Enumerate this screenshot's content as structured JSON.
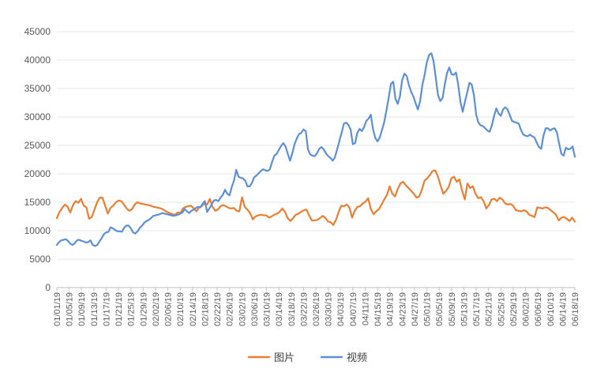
{
  "chart_data": {
    "type": "line",
    "ylim": [
      0,
      45000
    ],
    "y_ticks": [
      0,
      5000,
      10000,
      15000,
      20000,
      25000,
      30000,
      35000,
      40000,
      45000
    ],
    "x_tick_labels": [
      "01/01/19",
      "01/05/19",
      "01/09/19",
      "01/13/19",
      "01/17/19",
      "01/21/19",
      "01/25/19",
      "01/29/19",
      "02/02/19",
      "02/06/19",
      "02/10/19",
      "02/14/19",
      "02/18/19",
      "02/22/19",
      "02/26/19",
      "03/02/19",
      "03/06/19",
      "03/10/19",
      "03/14/19",
      "03/18/19",
      "03/22/19",
      "03/26/19",
      "03/30/19",
      "04/03/19",
      "04/07/19",
      "04/11/19",
      "04/15/19",
      "04/19/19",
      "04/23/19",
      "04/27/19",
      "05/01/19",
      "05/05/19",
      "05/09/19",
      "05/13/19",
      "05/17/19",
      "05/21/19",
      "05/25/19",
      "05/29/19",
      "06/02/19",
      "06/06/19",
      "06/10/19",
      "06/14/19",
      "06/18/19"
    ],
    "grid": true,
    "legend_position": "bottom",
    "series": [
      {
        "name": "图片",
        "color": "#ED7D31",
        "values": [
          12200,
          13300,
          14000,
          14600,
          14200,
          13200,
          14500,
          15200,
          14900,
          15600,
          14400,
          14100,
          12100,
          12400,
          13700,
          15000,
          15800,
          15800,
          14400,
          13000,
          14000,
          14400,
          15000,
          15300,
          15200,
          14600,
          13900,
          13500,
          13800,
          14600,
          15000,
          14800,
          14700,
          14600,
          14500,
          14400,
          14200,
          14100,
          14000,
          13900,
          13600,
          13300,
          13100,
          12900,
          12800,
          13200,
          13100,
          13900,
          14200,
          14300,
          14400,
          13900,
          13400,
          14100,
          14300,
          14800,
          14600,
          15600,
          14200,
          13500,
          13700,
          14300,
          14500,
          14300,
          14000,
          13900,
          14000,
          13500,
          13400,
          15900,
          14200,
          13700,
          13100,
          12000,
          12500,
          12700,
          12800,
          12700,
          12700,
          12300,
          12500,
          12800,
          13000,
          13300,
          13900,
          13300,
          12200,
          11700,
          12200,
          12800,
          13000,
          13300,
          13600,
          13700,
          12700,
          11800,
          11800,
          11900,
          12200,
          12600,
          12300,
          11600,
          11500,
          11000,
          11900,
          13300,
          14400,
          14300,
          14600,
          14100,
          12300,
          13500,
          14200,
          14300,
          14800,
          15100,
          15700,
          13800,
          12900,
          13400,
          13800,
          14600,
          15500,
          16300,
          17800,
          16500,
          16000,
          17300,
          18300,
          18600,
          18000,
          17500,
          17000,
          16500,
          15800,
          16000,
          17200,
          18800,
          19200,
          19800,
          20500,
          20600,
          19500,
          17900,
          16500,
          17000,
          17700,
          19200,
          19500,
          18600,
          19000,
          17000,
          15500,
          18300,
          17500,
          17800,
          16500,
          15700,
          15900,
          15200,
          13900,
          14500,
          15500,
          15600,
          15200,
          15800,
          15500,
          14800,
          14600,
          14700,
          14400,
          13600,
          13500,
          13400,
          13600,
          13400,
          12800,
          12600,
          12400,
          14100,
          14000,
          13900,
          14100,
          14000,
          13600,
          13200,
          12800,
          11800,
          12300,
          12400,
          12100,
          11700,
          12300,
          11600
        ]
      },
      {
        "name": "视频",
        "color": "#5B8FD9",
        "values": [
          7500,
          8000,
          8300,
          8400,
          8500,
          8200,
          7700,
          7500,
          7800,
          8300,
          8400,
          8200,
          8100,
          7900,
          8000,
          8300,
          7500,
          7300,
          7500,
          8100,
          8700,
          9400,
          9700,
          9800,
          10600,
          10400,
          10100,
          9900,
          9900,
          9800,
          10500,
          10900,
          10900,
          10400,
          9700,
          9500,
          9900,
          10500,
          10900,
          11400,
          11700,
          11900,
          12200,
          12600,
          12700,
          12800,
          12900,
          13100,
          13000,
          12900,
          12800,
          12700,
          12600,
          12700,
          12800,
          13000,
          13200,
          13800,
          13400,
          13100,
          13500,
          13700,
          14000,
          14200,
          14100,
          14700,
          15200,
          13300,
          13900,
          14600,
          15300,
          15400,
          15200,
          15800,
          16300,
          17200,
          16500,
          16200,
          17700,
          18800,
          20700,
          19500,
          19300,
          19200,
          18800,
          17800,
          17800,
          18400,
          19400,
          19700,
          20100,
          20500,
          20800,
          20600,
          20500,
          20800,
          22100,
          23200,
          23500,
          24200,
          24900,
          25400,
          24800,
          23500,
          22300,
          23600,
          25200,
          26200,
          27000,
          27200,
          27800,
          27500,
          24300,
          23400,
          23200,
          23100,
          23600,
          24400,
          24700,
          24300,
          23600,
          23100,
          22800,
          22300,
          22900,
          24300,
          25800,
          27200,
          28800,
          29000,
          28600,
          27800,
          25200,
          25400,
          27200,
          27900,
          27500,
          28200,
          29300,
          29700,
          30400,
          27800,
          26300,
          25700,
          26400,
          27700,
          29100,
          31200,
          33400,
          35800,
          36200,
          33200,
          32300,
          33600,
          36500,
          37600,
          37200,
          35600,
          34400,
          33600,
          32400,
          31300,
          32800,
          35600,
          37400,
          39600,
          40900,
          41200,
          39800,
          36800,
          33800,
          32800,
          33300,
          35700,
          37700,
          38700,
          37500,
          37400,
          37800,
          35600,
          32600,
          30900,
          32700,
          34300,
          36000,
          35700,
          33800,
          30400,
          29000,
          28500,
          28400,
          28000,
          27600,
          27400,
          28500,
          30200,
          31500,
          30600,
          30200,
          31300,
          31700,
          31300,
          30300,
          29300,
          29100,
          29000,
          28800,
          27700,
          26900,
          26700,
          26600,
          26900,
          26600,
          26400,
          25500,
          24700,
          24400,
          26700,
          28000,
          28000,
          27600,
          27900,
          28000,
          27300,
          25300,
          23500,
          23200,
          24600,
          24300,
          24400,
          24800,
          23000
        ]
      }
    ]
  }
}
